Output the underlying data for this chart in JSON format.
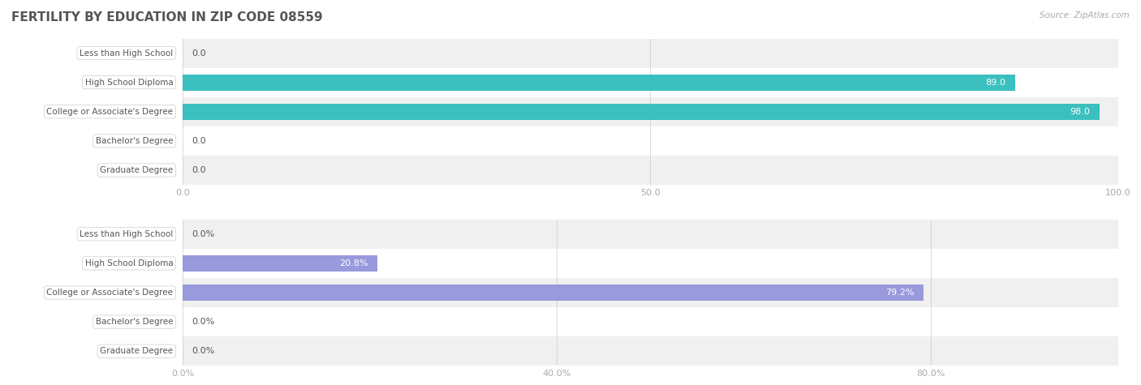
{
  "title": "FERTILITY BY EDUCATION IN ZIP CODE 08559",
  "source_text": "Source: ZipAtlas.com",
  "chart1": {
    "categories": [
      "Less than High School",
      "High School Diploma",
      "College or Associate's Degree",
      "Bachelor's Degree",
      "Graduate Degree"
    ],
    "values": [
      0.0,
      89.0,
      98.0,
      0.0,
      0.0
    ],
    "bar_color": "#3bbfbf",
    "xlim": [
      0,
      100
    ],
    "xticks": [
      0.0,
      50.0,
      100.0
    ],
    "row_bg_colors": [
      "#f0f0f0",
      "#ffffff"
    ]
  },
  "chart2": {
    "categories": [
      "Less than High School",
      "High School Diploma",
      "College or Associate's Degree",
      "Bachelor's Degree",
      "Graduate Degree"
    ],
    "values": [
      0.0,
      20.8,
      79.2,
      0.0,
      0.0
    ],
    "bar_color": "#9999dd",
    "xlim": [
      0,
      100
    ],
    "xticks": [
      0.0,
      40.0,
      80.0
    ],
    "row_bg_colors": [
      "#f0f0f0",
      "#ffffff"
    ]
  },
  "label_box_color": "#ffffff",
  "label_box_edge_color": "#cccccc",
  "label_text_color": "#555555",
  "label_color_outside": "#555555",
  "label_color_inside": "#ffffff",
  "title_color": "#555555",
  "title_fontsize": 11,
  "axis_tick_color": "#aaaaaa",
  "axis_tick_fontsize": 8,
  "bar_height": 0.55,
  "label_fontsize": 7.5,
  "value_fontsize": 8
}
